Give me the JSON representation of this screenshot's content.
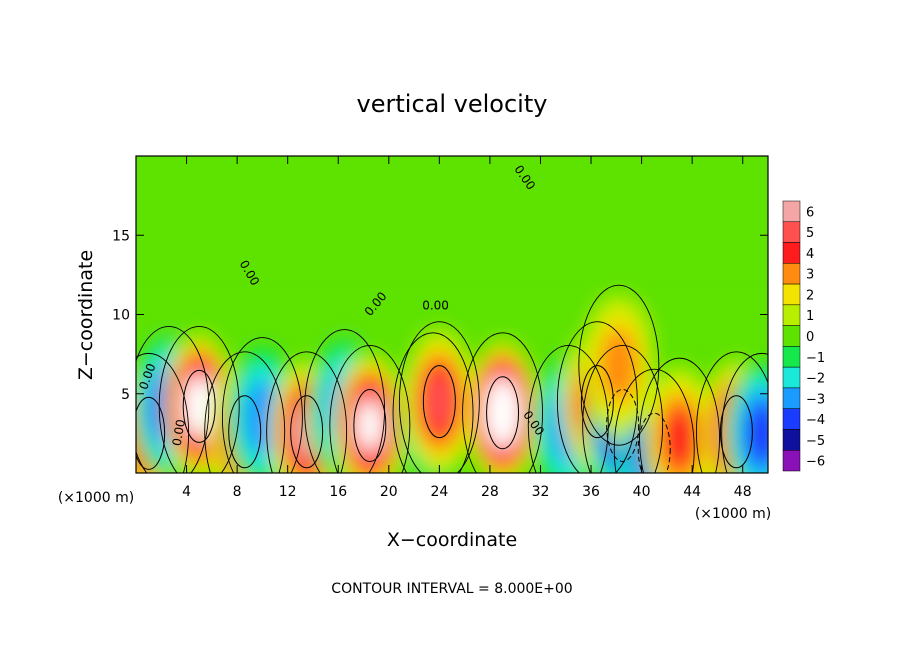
{
  "chart_data": {
    "type": "heatmap",
    "title": "vertical velocity",
    "xlabel": "X−coordinate",
    "ylabel": "Z−coordinate",
    "x_unit_left": "(×1000 m)",
    "x_unit_right": "(×1000 m)",
    "xlim": [
      0,
      50
    ],
    "ylim": [
      0,
      20
    ],
    "x_ticks": [
      4,
      8,
      12,
      16,
      20,
      24,
      28,
      32,
      36,
      40,
      44,
      48
    ],
    "y_ticks": [
      5,
      10,
      15
    ],
    "colorbar": {
      "levels": [
        6,
        5,
        4,
        3,
        2,
        1,
        0,
        -1,
        -2,
        -3,
        -4,
        -5,
        -6
      ],
      "labels": [
        "6",
        "5",
        "4",
        "3",
        "2",
        "1",
        "0",
        "−1",
        "−2",
        "−3",
        "−4",
        "−5",
        "−6"
      ],
      "colors": [
        "#f4a6a6",
        "#ff5050",
        "#ff1c1c",
        "#ff8c10",
        "#f2e400",
        "#b8ee00",
        "#5ee200",
        "#14e84a",
        "#1ae8d8",
        "#1a9cff",
        "#1a3cff",
        "#10109e",
        "#8a10b8"
      ]
    },
    "contour_labels": [
      "0.00",
      "0.00",
      "0.00",
      "0.00",
      "0.00",
      "0.00",
      "0.00",
      "0.00"
    ],
    "contour_interval_text": "CONTOUR INTERVAL =  8.000E+00",
    "features": [
      {
        "x": 1.0,
        "z": 2.5,
        "w": 5
      },
      {
        "x": 2.6,
        "z": 4.2,
        "w": -4
      },
      {
        "x": 5.0,
        "z": 4.2,
        "w": 8
      },
      {
        "x": 8.6,
        "z": 2.6,
        "w": 6
      },
      {
        "x": 10.0,
        "z": 3.5,
        "w": -3
      },
      {
        "x": 13.5,
        "z": 2.6,
        "w": 6
      },
      {
        "x": 16.5,
        "z": 4.0,
        "w": -3
      },
      {
        "x": 18.5,
        "z": 3.0,
        "w": 7
      },
      {
        "x": 23.5,
        "z": 3.8,
        "w": -4
      },
      {
        "x": 24.0,
        "z": 4.5,
        "w": 5
      },
      {
        "x": 29.0,
        "z": 3.8,
        "w": 9
      },
      {
        "x": 34.2,
        "z": 3.0,
        "w": -3
      },
      {
        "x": 36.5,
        "z": 4.5,
        "w": 5
      },
      {
        "x": 38.5,
        "z": 3.0,
        "w": -6
      },
      {
        "x": 41.0,
        "z": 1.5,
        "w": -5
      },
      {
        "x": 43.0,
        "z": 2.2,
        "w": 4
      },
      {
        "x": 47.5,
        "z": 2.6,
        "w": 6
      },
      {
        "x": 49.5,
        "z": 2.5,
        "w": -4
      },
      {
        "x": 38.2,
        "z": 6.8,
        "w": 3
      }
    ]
  }
}
